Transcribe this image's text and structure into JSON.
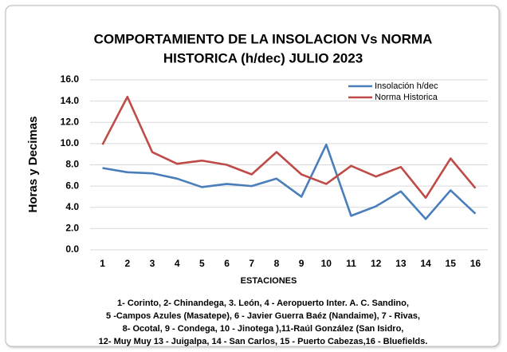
{
  "chart_data": {
    "type": "line",
    "title": [
      "COMPORTAMIENTO DE LA INSOLACION Vs NORMA",
      "HISTORICA  (h/dec) JULIO  2023"
    ],
    "ylabel": "Horas y Decimas",
    "xlabel": "ESTACIONES",
    "categories": [
      "1",
      "2",
      "3",
      "4",
      "5",
      "6",
      "7",
      "8",
      "9",
      "10",
      "11",
      "12",
      "13",
      "14",
      "15",
      "16"
    ],
    "series": [
      {
        "name": "Insolación h/dec",
        "color": "#4a7ebb",
        "values": [
          7.7,
          7.3,
          7.2,
          6.7,
          5.9,
          6.2,
          6.0,
          6.7,
          5.0,
          9.9,
          3.2,
          4.1,
          5.5,
          2.9,
          5.6,
          3.4
        ]
      },
      {
        "name": "Norma Historica",
        "color": "#be4b48",
        "values": [
          9.9,
          14.4,
          9.2,
          8.1,
          8.4,
          8.0,
          7.1,
          9.2,
          7.1,
          6.2,
          7.9,
          6.9,
          7.8,
          4.9,
          8.6,
          5.8
        ]
      }
    ],
    "ylim": [
      0,
      16
    ],
    "yticks": [
      {
        "value": 0,
        "label": "0.0"
      },
      {
        "value": 2,
        "label": "2.0"
      },
      {
        "value": 4,
        "label": "4.0"
      },
      {
        "value": 6,
        "label": "6.0"
      },
      {
        "value": 8,
        "label": "8.0"
      },
      {
        "value": 10,
        "label": "10.0"
      },
      {
        "value": 12,
        "label": "12.0"
      },
      {
        "value": 14,
        "label": "14.0"
      },
      {
        "value": 16,
        "label": "16.0"
      }
    ],
    "grid": true,
    "legend": "upper right",
    "footnote": [
      "1- Corinto,  2- Chinandega,  3. León, 4 - Aeropuerto Inter. A. C. Sandino,",
      "5 -Campos Azules (Masatepe), 6 - Javier Guerra Baéz (Nandaime), 7 - Rivas,",
      "8- Ocotal, 9 - Condega, 10 - Jinotega ),11-Raúl  González  (San Isidro,",
      "12- Muy Muy 13 - Juigalpa, 14 - San Carlos, 15 - Puerto Cabezas,16 - Bluefields."
    ]
  }
}
